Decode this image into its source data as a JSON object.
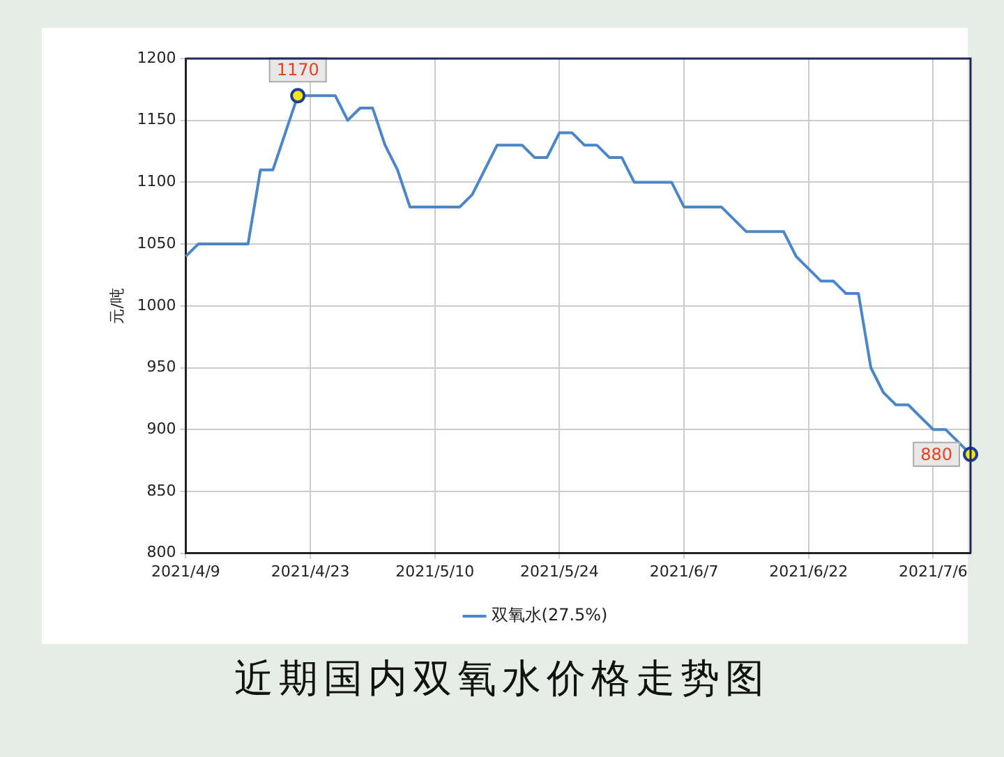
{
  "chart_data": {
    "type": "line",
    "title": "近期国内双氧水价格走势图",
    "ylabel": "元/吨",
    "categories": [
      "2021/4/9",
      null,
      null,
      null,
      null,
      null,
      null,
      null,
      null,
      null,
      "2021/4/23",
      null,
      null,
      null,
      null,
      null,
      null,
      null,
      null,
      null,
      "2021/5/10",
      null,
      null,
      null,
      null,
      null,
      null,
      null,
      null,
      null,
      "2021/5/24",
      null,
      null,
      null,
      null,
      null,
      null,
      null,
      null,
      null,
      "2021/6/7",
      null,
      null,
      null,
      null,
      null,
      null,
      null,
      null,
      null,
      "2021/6/22",
      null,
      null,
      null,
      null,
      null,
      null,
      null,
      null,
      null,
      "2021/7/6",
      null,
      null,
      null
    ],
    "series": [
      {
        "name": "双氧水(27.5%)",
        "color": "#4a86c8",
        "values": [
          1040,
          1050,
          1050,
          1050,
          1050,
          1050,
          1110,
          1110,
          1140,
          1170,
          1170,
          1170,
          1170,
          1150,
          1160,
          1160,
          1130,
          1110,
          1080,
          1080,
          1080,
          1080,
          1080,
          1090,
          1110,
          1130,
          1130,
          1130,
          1120,
          1120,
          1140,
          1140,
          1130,
          1130,
          1120,
          1120,
          1100,
          1100,
          1100,
          1100,
          1080,
          1080,
          1080,
          1080,
          1070,
          1060,
          1060,
          1060,
          1060,
          1040,
          1030,
          1020,
          1020,
          1010,
          1010,
          950,
          930,
          920,
          920,
          910,
          900,
          900,
          890,
          880
        ]
      }
    ],
    "ylim": [
      800,
      1200
    ],
    "yticks": [
      800,
      850,
      900,
      950,
      1000,
      1050,
      1100,
      1150,
      1200
    ],
    "grid": true,
    "legend": "bottom",
    "marker": "none",
    "line_style": "solid",
    "annotations": [
      {
        "text": "1170",
        "y": 1170
      },
      {
        "text": "880",
        "y": 880
      }
    ]
  }
}
